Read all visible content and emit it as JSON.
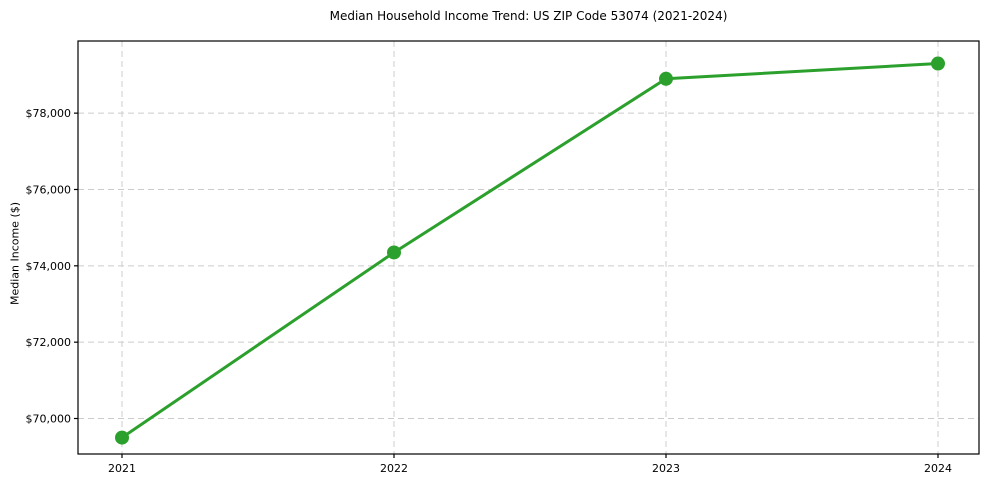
{
  "chart_data": {
    "type": "line",
    "title": "Median Household Income Trend: US ZIP Code 53074 (2021-2024)",
    "xlabel": "",
    "ylabel": "Median Income ($)",
    "categories": [
      "2021",
      "2022",
      "2023",
      "2024"
    ],
    "series": [
      {
        "name": "Median Household Income",
        "values": [
          69500,
          74350,
          78900,
          79300
        ]
      }
    ],
    "yticks": {
      "values": [
        70000,
        72000,
        74000,
        76000,
        78000
      ],
      "labels": [
        "$70,000",
        "$72,000",
        "$74,000",
        "$76,000",
        "$78,000"
      ]
    },
    "ylim": [
      69070,
      79890
    ],
    "grid": true,
    "grid_style": "dashed",
    "legend": false,
    "colors": {
      "line": "#2ca02c",
      "marker": "#2ca02c",
      "grid": "#cccccc",
      "axis": "#000000",
      "text": "#000000",
      "background": "#ffffff"
    }
  }
}
